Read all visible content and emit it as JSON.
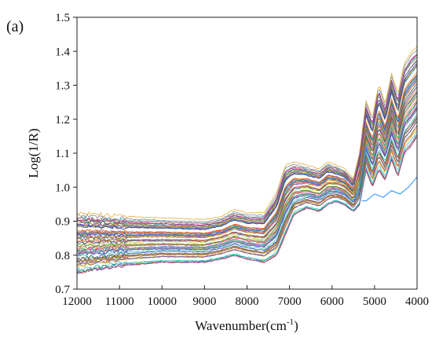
{
  "chart_data": {
    "type": "line",
    "panel_label": "(a)",
    "title": "",
    "xlabel": "Wavenumber(cm",
    "xlabel_sup": "-1",
    "xlabel_close": ")",
    "ylabel": "Log(1/R)",
    "x_reversed": true,
    "xlim": [
      12000,
      4000
    ],
    "ylim": [
      0.7,
      1.5
    ],
    "x_ticks": [
      "12000",
      "11000",
      "10000",
      "9000",
      "8000",
      "7000",
      "6000",
      "5000",
      "4000"
    ],
    "y_ticks": [
      "0.7",
      "0.8",
      "0.9",
      "1.0",
      "1.1",
      "1.2",
      "1.3",
      "1.4",
      "1.5"
    ],
    "grid": false,
    "legend": "none",
    "series_count": 60,
    "spectrum_shape": {
      "x": [
        12000,
        11000,
        10000,
        9000,
        8600,
        8300,
        8000,
        7600,
        7300,
        7100,
        6900,
        6600,
        6300,
        6100,
        5900,
        5700,
        5500,
        5350,
        5200,
        5050,
        4900,
        4750,
        4600,
        4450,
        4300,
        4150,
        4000
      ],
      "lower_envelope": [
        0.75,
        0.77,
        0.78,
        0.78,
        0.79,
        0.8,
        0.79,
        0.78,
        0.8,
        0.86,
        0.92,
        0.94,
        0.93,
        0.95,
        0.96,
        0.95,
        0.93,
        0.95,
        1.05,
        1.0,
        1.05,
        1.02,
        1.08,
        1.03,
        1.1,
        1.12,
        1.15
      ],
      "upper_envelope": [
        0.92,
        0.91,
        0.905,
        0.9,
        0.91,
        0.93,
        0.92,
        0.92,
        0.98,
        1.06,
        1.07,
        1.06,
        1.05,
        1.07,
        1.06,
        1.05,
        1.02,
        1.1,
        1.25,
        1.2,
        1.3,
        1.24,
        1.33,
        1.27,
        1.36,
        1.39,
        1.41
      ]
    },
    "outlier_series": {
      "x": [
        5300,
        5200,
        5000,
        4800,
        4600,
        4400,
        4200,
        4000
      ],
      "values": [
        0.96,
        0.96,
        0.98,
        0.97,
        0.99,
        0.98,
        1.0,
        1.03
      ]
    },
    "colors": [
      "#1f4fd1",
      "#d62728",
      "#2ca02c",
      "#9467bd",
      "#ff7f0e",
      "#17becf",
      "#bcbd22",
      "#8c564b",
      "#e377c2",
      "#3a8f3a",
      "#0b3d91",
      "#b8860b",
      "#6a5acd",
      "#20b2aa",
      "#cd5c5c",
      "#556b2f",
      "#4682b4",
      "#c71585",
      "#708090",
      "#daa520"
    ]
  }
}
